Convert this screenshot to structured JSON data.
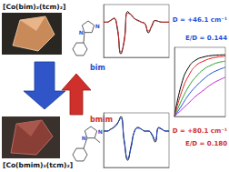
{
  "labels": {
    "top_compound": "[Co(bim)₂(tcm)₂]",
    "bottom_compound": "[Co(bmim)₂(tcm)₂]",
    "ligand_top": "bim",
    "ligand_bottom": "bmim",
    "atom": "N",
    "params_top": [
      "D = +46.1 cm⁻¹",
      "E/D = 0.144"
    ],
    "params_bottom": [
      "D = +80.1 cm⁻¹",
      "E/D = 0.180"
    ]
  },
  "chart_data": [
    {
      "type": "line",
      "tick_labels": false,
      "grid": false,
      "x": [
        0,
        1,
        2,
        3,
        4,
        5,
        6,
        7,
        8,
        9,
        10,
        11,
        12,
        13,
        14,
        15,
        16,
        17,
        18,
        19
      ],
      "xlim": [
        0,
        19
      ],
      "ylim": [
        -1,
        0.5
      ],
      "series": [
        {
          "color": "#000000",
          "line_style": "solid",
          "values": [
            0,
            0,
            0.05,
            0.1,
            -0.2,
            -0.9,
            -0.5,
            0.3,
            0.2,
            0.1,
            0.05,
            0,
            -0.05,
            -0.3,
            -0.1,
            0.05,
            0.02,
            0,
            0,
            0
          ]
        },
        {
          "color": "#d62728",
          "line_style": "solid",
          "values": [
            0,
            0,
            0.04,
            0.12,
            -0.15,
            -0.85,
            -0.55,
            0.25,
            0.22,
            0.1,
            0.04,
            0,
            -0.04,
            -0.25,
            -0.12,
            0.04,
            0.02,
            0,
            0,
            0
          ]
        }
      ]
    },
    {
      "type": "line",
      "tick_labels": false,
      "grid": false,
      "x": [
        0,
        1,
        2,
        3,
        4,
        5,
        6,
        7,
        8,
        9,
        10,
        11,
        12,
        13,
        14,
        15,
        16,
        17,
        18,
        19
      ],
      "xlim": [
        0,
        19
      ],
      "ylim": [
        -1,
        0.5
      ],
      "series": [
        {
          "color": "#000000",
          "line_style": "solid",
          "values": [
            0,
            0,
            0.05,
            0.1,
            0.2,
            0.4,
            -0.3,
            -0.8,
            -0.4,
            0,
            0.1,
            0.05,
            0,
            0,
            -0.1,
            -0.3,
            0.1,
            0.05,
            0,
            0
          ]
        },
        {
          "color": "#1f4fd6",
          "line_style": "solid",
          "values": [
            0,
            0,
            0.04,
            0.12,
            0.22,
            0.35,
            -0.25,
            -0.75,
            -0.45,
            0,
            0.08,
            0.05,
            0,
            0,
            -0.08,
            -0.25,
            0.08,
            0.04,
            0,
            0
          ]
        }
      ]
    },
    {
      "type": "line",
      "tick_labels": false,
      "grid": false,
      "x": [
        0,
        1,
        2,
        3,
        4,
        5,
        6,
        7
      ],
      "xlim": [
        0,
        7
      ],
      "ylim": [
        0,
        2.5
      ],
      "series": [
        {
          "color": "#000000",
          "values": [
            0,
            1.2,
            1.8,
            2.05,
            2.15,
            2.2,
            2.22,
            2.23
          ]
        },
        {
          "color": "#e31a1c",
          "values": [
            0,
            0.9,
            1.5,
            1.85,
            2.0,
            2.1,
            2.15,
            2.18
          ]
        },
        {
          "color": "#2ca02c",
          "values": [
            0,
            0.6,
            1.1,
            1.45,
            1.7,
            1.85,
            1.95,
            2.0
          ]
        },
        {
          "color": "#1f4fd6",
          "values": [
            0,
            0.4,
            0.8,
            1.1,
            1.35,
            1.55,
            1.68,
            1.78
          ]
        },
        {
          "color": "#c026d3",
          "values": [
            0,
            0.25,
            0.5,
            0.75,
            0.95,
            1.15,
            1.3,
            1.42
          ]
        }
      ]
    }
  ]
}
